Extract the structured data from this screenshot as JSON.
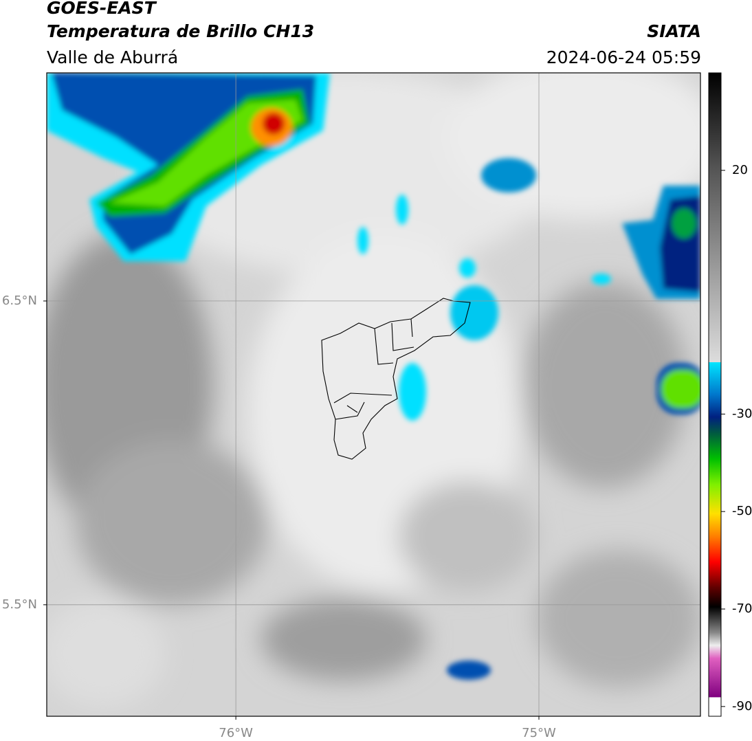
{
  "header": {
    "satellite": "GOES-EAST",
    "product": "Temperatura de Brillo CH13",
    "region": "Valle de Aburrá",
    "source": "SIATA",
    "timestamp": "2024-06-24 05:59"
  },
  "map": {
    "xlim": [
      -76.624,
      -74.467
    ],
    "ylim": [
      5.133,
      7.251
    ],
    "xticks": [
      {
        "value": -76,
        "label": "76°W"
      },
      {
        "value": -75,
        "label": "75°W"
      }
    ],
    "yticks": [
      {
        "value": 6.5,
        "label": "6.5°N"
      },
      {
        "value": 5.5,
        "label": "5.5°N"
      }
    ],
    "grid": true
  },
  "colorbar": {
    "lim": [
      -92,
      40
    ],
    "ticks": [
      20,
      -30,
      -50,
      -70,
      -90
    ]
  }
}
